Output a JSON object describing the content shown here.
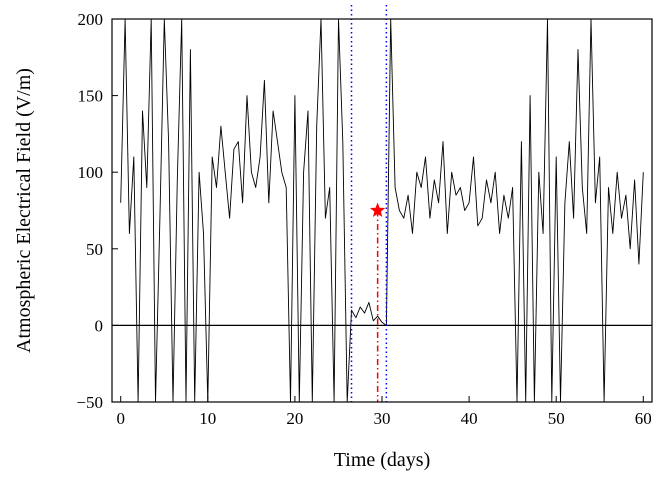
{
  "chart_data": {
    "type": "line",
    "title": "",
    "xlabel": "Time (days)",
    "ylabel": "Atmospheric Electrical Field (V/m)",
    "xlim": [
      -1,
      61
    ],
    "ylim": [
      -50,
      200
    ],
    "x_ticks": [
      "0",
      "10",
      "20",
      "30",
      "40",
      "50",
      "60"
    ],
    "y_ticks": [
      "-50",
      "0",
      "50",
      "100",
      "150",
      "200"
    ],
    "grid": false,
    "legend": "none",
    "zero_line": 0,
    "series": [
      {
        "color": "#000000",
        "x": [
          0,
          0.5,
          1,
          1.5,
          2,
          2.5,
          3,
          3.5,
          4,
          4.5,
          5,
          5.5,
          6,
          6.5,
          7,
          7.5,
          8,
          8.5,
          9,
          9.5,
          10,
          10.5,
          11,
          11.5,
          12,
          12.5,
          13,
          13.5,
          14,
          14.5,
          15,
          15.5,
          16,
          16.5,
          17,
          17.5,
          18,
          18.5,
          19,
          19.5,
          20,
          20.5,
          21,
          21.5,
          22,
          22.5,
          23,
          23.5,
          24,
          24.5,
          25,
          25.5,
          26,
          26.5,
          27,
          27.5,
          28,
          28.5,
          29,
          29.5,
          30,
          30.5,
          31,
          31.5,
          32,
          32.5,
          33,
          33.5,
          34,
          34.5,
          35,
          35.5,
          36,
          36.5,
          37,
          37.5,
          38,
          38.5,
          39,
          39.5,
          40,
          40.5,
          41,
          41.5,
          42,
          42.5,
          43,
          43.5,
          44,
          44.5,
          45,
          45.5,
          46,
          46.5,
          47,
          47.5,
          48,
          48.5,
          49,
          49.5,
          50,
          50.5,
          51,
          51.5,
          52,
          52.5,
          53,
          53.5,
          54,
          54.5,
          55,
          55.5,
          56,
          56.5,
          57,
          57.5,
          58,
          58.5,
          59,
          59.5,
          60
        ],
        "y": [
          80,
          200,
          60,
          110,
          -50,
          140,
          90,
          200,
          -50,
          70,
          200,
          120,
          -50,
          95,
          200,
          -50,
          180,
          -50,
          100,
          60,
          -50,
          110,
          90,
          130,
          100,
          70,
          115,
          120,
          80,
          150,
          100,
          90,
          110,
          160,
          80,
          140,
          120,
          100,
          90,
          -50,
          150,
          -50,
          100,
          140,
          -50,
          130,
          200,
          70,
          90,
          -50,
          200,
          120,
          -50,
          10,
          5,
          12,
          8,
          15,
          3,
          6,
          2,
          0,
          200,
          90,
          75,
          70,
          85,
          60,
          100,
          90,
          110,
          70,
          95,
          80,
          120,
          60,
          100,
          85,
          90,
          75,
          80,
          110,
          65,
          70,
          95,
          80,
          100,
          60,
          85,
          70,
          90,
          -50,
          120,
          -50,
          150,
          -50,
          100,
          60,
          200,
          -50,
          110,
          -50,
          80,
          120,
          70,
          180,
          90,
          60,
          200,
          80,
          110,
          -50,
          90,
          60,
          100,
          70,
          85,
          50,
          95,
          40,
          100
        ]
      }
    ],
    "annotations": [
      {
        "type": "vline",
        "x": 26.5,
        "color": "#0000ff",
        "style": "dotted"
      },
      {
        "type": "vline",
        "x": 30.5,
        "color": "#0000ff",
        "style": "dotted"
      },
      {
        "type": "vline",
        "x": 29.5,
        "y_top": 75,
        "color": "#ff0000",
        "style": "dashdot"
      },
      {
        "type": "marker",
        "shape": "star",
        "x": 29.5,
        "y": 75,
        "color": "#ff0000"
      }
    ]
  }
}
